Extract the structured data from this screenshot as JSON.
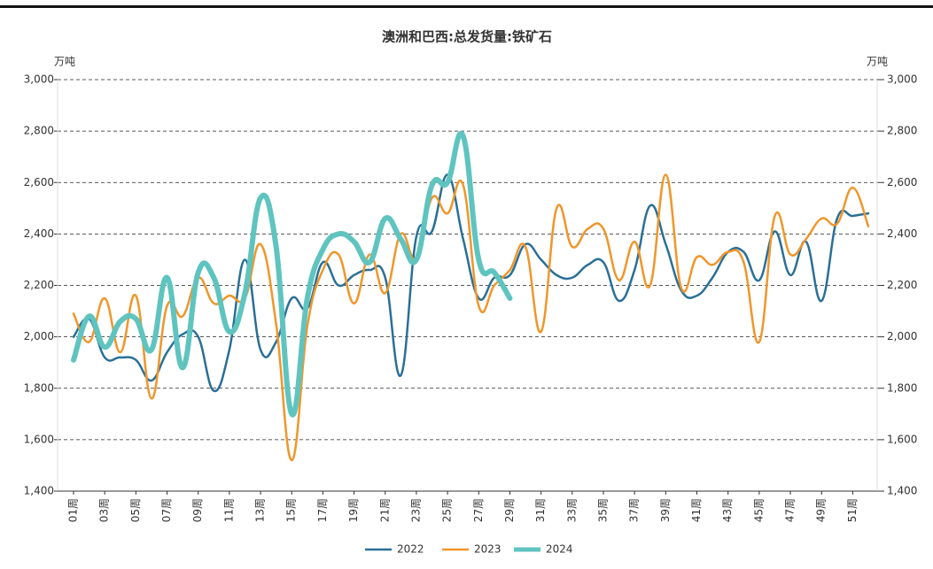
{
  "chart_data": {
    "type": "line",
    "title": "澳洲和巴西:总发货量:铁矿石",
    "y_unit": "万吨",
    "y2_unit": "万吨",
    "categories": [
      "01周",
      null,
      "03周",
      null,
      "05周",
      null,
      "07周",
      null,
      "09周",
      null,
      "11周",
      null,
      "13周",
      null,
      "15周",
      null,
      "17周",
      null,
      "19周",
      null,
      "21周",
      null,
      "23周",
      null,
      "25周",
      null,
      "27周",
      null,
      "29周",
      null,
      "31周",
      null,
      "33周",
      null,
      "35周",
      null,
      "37周",
      null,
      "39周",
      null,
      "41周",
      null,
      "43周",
      null,
      "45周",
      null,
      "47周",
      null,
      "49周",
      null,
      "51周",
      null
    ],
    "series": [
      {
        "name": "2022",
        "color": "#2a6f97",
        "width": 2.5,
        "values": [
          2000,
          2070,
          1920,
          1920,
          1910,
          1830,
          1940,
          2010,
          2000,
          1790,
          1950,
          2300,
          1950,
          1980,
          2150,
          2110,
          2290,
          2200,
          2240,
          2260,
          2230,
          1850,
          2390,
          2410,
          2630,
          2380,
          2150,
          2230,
          2240,
          2360,
          2300,
          2240,
          2230,
          2280,
          2290,
          2140,
          2260,
          2510,
          2360,
          2180,
          2160,
          2230,
          2330,
          2330,
          2220,
          2410,
          2240,
          2370,
          2140,
          2460,
          2470,
          2480
        ]
      },
      {
        "name": "2023",
        "color": "#f0962a",
        "width": 2.5,
        "values": [
          2090,
          1980,
          2150,
          1940,
          2160,
          1760,
          2120,
          2080,
          2230,
          2130,
          2160,
          2150,
          2360,
          2050,
          1520,
          2040,
          2260,
          2320,
          2130,
          2320,
          2170,
          2400,
          2300,
          2540,
          2480,
          2590,
          2120,
          2200,
          2260,
          2350,
          2020,
          2500,
          2350,
          2420,
          2420,
          2220,
          2370,
          2200,
          2630,
          2190,
          2310,
          2280,
          2330,
          2290,
          1980,
          2470,
          2320,
          2380,
          2460,
          2440,
          2580,
          2430
        ]
      },
      {
        "name": "2024",
        "color": "#5fc4c0",
        "width": 6,
        "values": [
          1910,
          2080,
          1960,
          2060,
          2070,
          1950,
          2230,
          1880,
          2250,
          2230,
          2020,
          2170,
          2540,
          2350,
          1700,
          2150,
          2340,
          2400,
          2370,
          2290,
          2460,
          2380,
          2300,
          2590,
          2600,
          2780,
          2300,
          2250,
          2150,
          null,
          null,
          null,
          null,
          null,
          null,
          null,
          null,
          null,
          null,
          null,
          null,
          null,
          null,
          null,
          null,
          null,
          null,
          null,
          null,
          null,
          null,
          null
        ]
      }
    ],
    "ylim": [
      1400,
      3000
    ],
    "yticks": [
      {
        "value": 1400,
        "label": "1,400"
      },
      {
        "value": 1600,
        "label": "1,600"
      },
      {
        "value": 1800,
        "label": "1,800"
      },
      {
        "value": 2000,
        "label": "2,000"
      },
      {
        "value": 2200,
        "label": "2,200"
      },
      {
        "value": 2400,
        "label": "2,400"
      },
      {
        "value": 2600,
        "label": "2,600"
      },
      {
        "value": 2800,
        "label": "2,800"
      },
      {
        "value": 3000,
        "label": "3,000"
      }
    ],
    "y2lim": [
      1400,
      3000
    ],
    "y2ticks": [
      {
        "value": 1400,
        "label": "1,400"
      },
      {
        "value": 1600,
        "label": "1,600"
      },
      {
        "value": 1800,
        "label": "1,800"
      },
      {
        "value": 2000,
        "label": "2,000"
      },
      {
        "value": 2200,
        "label": "2,200"
      },
      {
        "value": 2400,
        "label": "2,400"
      },
      {
        "value": 2600,
        "label": "2,600"
      },
      {
        "value": 2800,
        "label": "2,800"
      },
      {
        "value": 3000,
        "label": "3,000"
      }
    ],
    "grid": true,
    "legend": "bottom"
  }
}
